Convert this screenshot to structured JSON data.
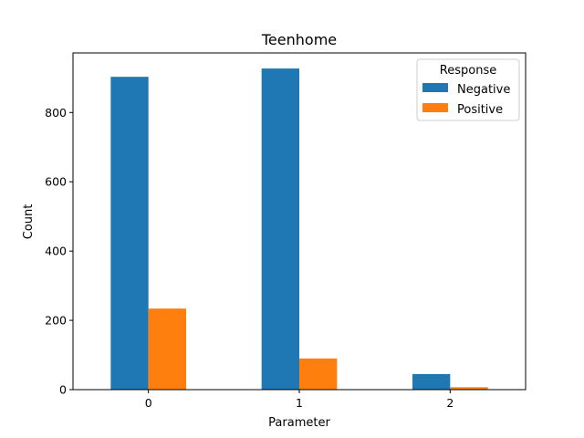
{
  "chart_data": {
    "type": "bar",
    "title": "Teenhome",
    "xlabel": "Parameter",
    "ylabel": "Count",
    "categories": [
      "0",
      "1",
      "2"
    ],
    "series": [
      {
        "name": "Negative",
        "values": [
          903,
          927,
          45
        ],
        "color": "#1f77b4"
      },
      {
        "name": "Positive",
        "values": [
          234,
          90,
          7
        ],
        "color": "#ff7f0e"
      }
    ],
    "ylim": [
      0,
      972
    ],
    "yticks": [
      0,
      200,
      400,
      600,
      800
    ],
    "legend": {
      "title": "Response",
      "placement": "top-right"
    },
    "grid": false
  }
}
